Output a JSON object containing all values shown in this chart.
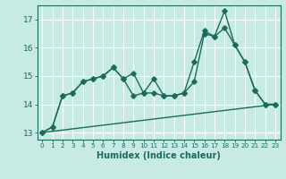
{
  "xlabel": "Humidex (Indice chaleur)",
  "bg_color": "#c8eae4",
  "grid_color": "#ffffff",
  "line_color": "#1a6b5a",
  "xlim": [
    -0.5,
    23.5
  ],
  "ylim": [
    12.75,
    17.5
  ],
  "xticks": [
    0,
    1,
    2,
    3,
    4,
    5,
    6,
    7,
    8,
    9,
    10,
    11,
    12,
    13,
    14,
    15,
    16,
    17,
    18,
    19,
    20,
    21,
    22,
    23
  ],
  "yticks": [
    13,
    14,
    15,
    16,
    17
  ],
  "line1_x": [
    0,
    1,
    2,
    3,
    4,
    5,
    6,
    7,
    8,
    9,
    10,
    11,
    12,
    13,
    14,
    15,
    16,
    17,
    18,
    19,
    20,
    21,
    22,
    23
  ],
  "line1_y": [
    13.0,
    13.2,
    14.3,
    14.4,
    14.8,
    14.9,
    15.0,
    15.3,
    14.9,
    15.1,
    14.4,
    14.9,
    14.3,
    14.3,
    14.4,
    14.8,
    16.5,
    16.4,
    17.3,
    16.1,
    15.5,
    14.5,
    14.0,
    14.0
  ],
  "line2_x": [
    0,
    1,
    2,
    3,
    4,
    5,
    6,
    7,
    8,
    9,
    10,
    11,
    12,
    13,
    14,
    15,
    16,
    17,
    18,
    19,
    20,
    21,
    22,
    23
  ],
  "line2_y": [
    13.0,
    13.2,
    14.3,
    14.4,
    14.8,
    14.9,
    15.0,
    15.3,
    14.9,
    14.3,
    14.4,
    14.4,
    14.3,
    14.3,
    14.4,
    15.5,
    16.6,
    16.4,
    16.7,
    16.1,
    15.5,
    14.5,
    14.0,
    14.0
  ],
  "line3_x": [
    0,
    23
  ],
  "line3_y": [
    13.0,
    14.0
  ]
}
